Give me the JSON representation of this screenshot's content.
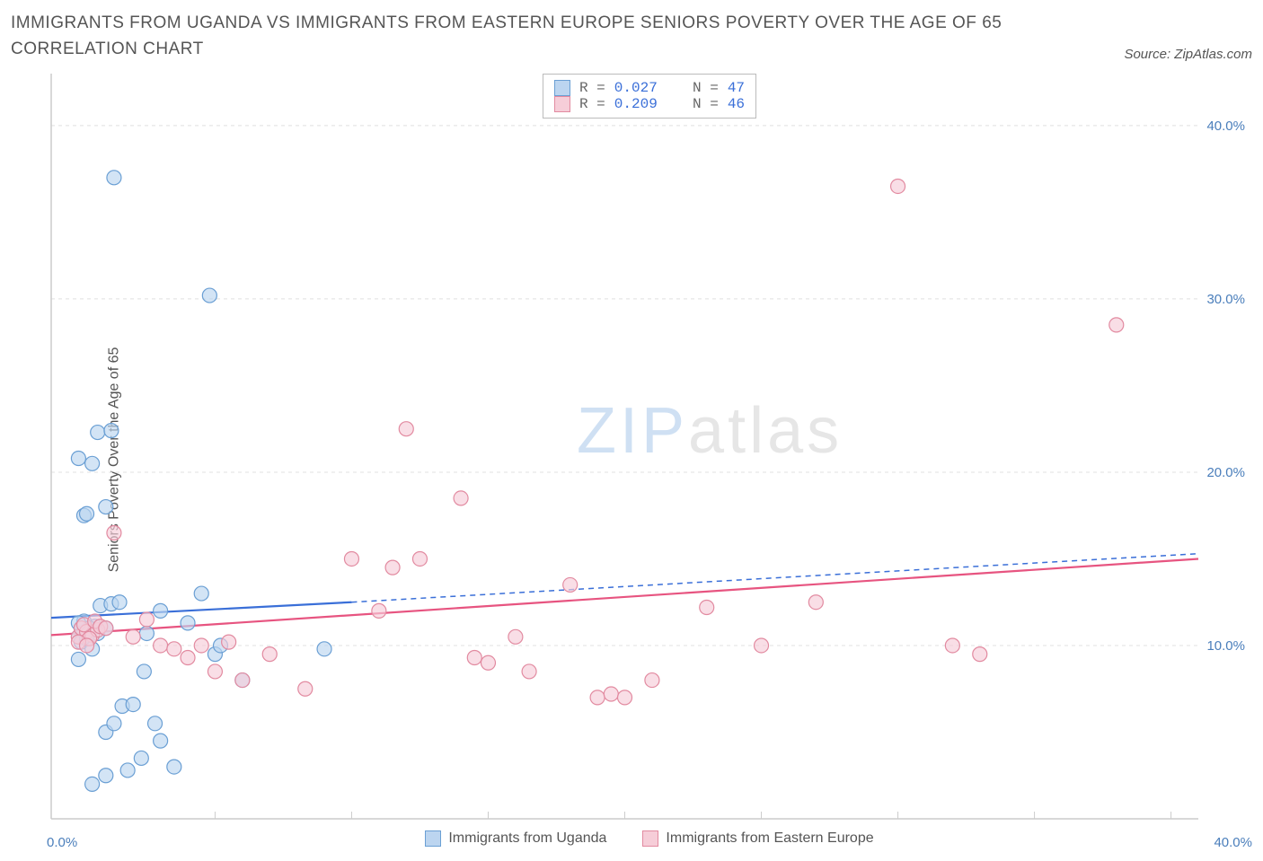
{
  "header": {
    "title": "IMMIGRANTS FROM UGANDA VS IMMIGRANTS FROM EASTERN EUROPE SENIORS POVERTY OVER THE AGE OF 65 CORRELATION CHART",
    "source": "Source: ZipAtlas.com"
  },
  "chart": {
    "type": "scatter",
    "ylabel": "Seniors Poverty Over the Age of 65",
    "x_axis_label_left": "0.0%",
    "x_axis_label_right": "40.0%",
    "xlim": [
      -1,
      41
    ],
    "ylim": [
      0,
      43
    ],
    "y_ticks": [
      10,
      20,
      30,
      40
    ],
    "y_tick_labels": [
      "10.0%",
      "20.0%",
      "30.0%",
      "40.0%"
    ],
    "x_tick_positions": [
      5,
      10,
      15,
      20,
      25,
      30,
      35,
      40
    ],
    "grid_color": "#e0e0e0",
    "axis_color": "#cccccc",
    "background_color": "#ffffff",
    "tick_label_color": "#4a7ebb",
    "marker_radius": 8,
    "marker_stroke_width": 1.2,
    "trend_line_width": 2.2,
    "series": [
      {
        "name": "Immigrants from Uganda",
        "fill": "#bcd5f0",
        "stroke": "#6a9fd4",
        "line_color": "#3a6fd8",
        "R": "0.027",
        "N": "47",
        "trend": {
          "x1": -1,
          "y1": 11.6,
          "x2": 10,
          "y2": 12.5,
          "dash_x2": 41,
          "dash_y2": 15.3
        },
        "points": [
          [
            0.0,
            10.5
          ],
          [
            0.1,
            11.0
          ],
          [
            0.2,
            10.8
          ],
          [
            0.3,
            10.6
          ],
          [
            0.5,
            10.9
          ],
          [
            0.6,
            11.1
          ],
          [
            0.2,
            11.4
          ],
          [
            0.4,
            11.0
          ],
          [
            0.7,
            10.7
          ],
          [
            0.1,
            10.2
          ],
          [
            0.0,
            11.3
          ],
          [
            0.3,
            10.4
          ],
          [
            0.8,
            12.3
          ],
          [
            1.2,
            12.4
          ],
          [
            1.0,
            11.0
          ],
          [
            1.5,
            12.5
          ],
          [
            0.0,
            20.8
          ],
          [
            0.5,
            20.5
          ],
          [
            0.2,
            17.5
          ],
          [
            0.3,
            17.6
          ],
          [
            1.0,
            18.0
          ],
          [
            0.7,
            22.3
          ],
          [
            1.2,
            22.4
          ],
          [
            4.8,
            30.2
          ],
          [
            1.3,
            37.0
          ],
          [
            0.0,
            9.2
          ],
          [
            0.5,
            9.8
          ],
          [
            1.0,
            5.0
          ],
          [
            1.3,
            5.5
          ],
          [
            1.6,
            6.5
          ],
          [
            2.0,
            6.6
          ],
          [
            2.4,
            8.5
          ],
          [
            0.5,
            2.0
          ],
          [
            1.0,
            2.5
          ],
          [
            1.8,
            2.8
          ],
          [
            2.3,
            3.5
          ],
          [
            3.0,
            4.5
          ],
          [
            3.5,
            3.0
          ],
          [
            2.8,
            5.5
          ],
          [
            6.0,
            8.0
          ],
          [
            5.0,
            9.5
          ],
          [
            9.0,
            9.8
          ],
          [
            2.5,
            10.7
          ],
          [
            3.0,
            12.0
          ],
          [
            4.0,
            11.3
          ],
          [
            4.5,
            13.0
          ],
          [
            5.2,
            10.0
          ]
        ]
      },
      {
        "name": "Immigrants from Eastern Europe",
        "fill": "#f6cdd8",
        "stroke": "#e28aa0",
        "line_color": "#e75480",
        "R": "0.209",
        "N": "46",
        "trend": {
          "x1": -1,
          "y1": 10.6,
          "x2": 41,
          "y2": 15.0
        },
        "points": [
          [
            0.0,
            10.5
          ],
          [
            0.1,
            11.0
          ],
          [
            0.3,
            10.8
          ],
          [
            0.5,
            10.6
          ],
          [
            0.7,
            10.9
          ],
          [
            0.2,
            11.2
          ],
          [
            0.4,
            10.4
          ],
          [
            0.6,
            11.4
          ],
          [
            0.0,
            10.2
          ],
          [
            0.8,
            11.1
          ],
          [
            1.0,
            11.0
          ],
          [
            0.3,
            10.0
          ],
          [
            1.3,
            16.5
          ],
          [
            2.0,
            10.5
          ],
          [
            2.5,
            11.5
          ],
          [
            3.0,
            10.0
          ],
          [
            3.5,
            9.8
          ],
          [
            4.5,
            10.0
          ],
          [
            5.5,
            10.2
          ],
          [
            4.0,
            9.3
          ],
          [
            5.0,
            8.5
          ],
          [
            6.0,
            8.0
          ],
          [
            7.0,
            9.5
          ],
          [
            8.3,
            7.5
          ],
          [
            10.0,
            15.0
          ],
          [
            11.0,
            12.0
          ],
          [
            11.5,
            14.5
          ],
          [
            12.5,
            15.0
          ],
          [
            12.0,
            22.5
          ],
          [
            14.5,
            9.3
          ],
          [
            14.0,
            18.5
          ],
          [
            15.0,
            9.0
          ],
          [
            16.0,
            10.5
          ],
          [
            16.5,
            8.5
          ],
          [
            18.0,
            13.5
          ],
          [
            19.0,
            7.0
          ],
          [
            19.5,
            7.2
          ],
          [
            20.0,
            7.0
          ],
          [
            21.0,
            8.0
          ],
          [
            23.0,
            12.2
          ],
          [
            25.0,
            10.0
          ],
          [
            27.0,
            12.5
          ],
          [
            30.0,
            36.5
          ],
          [
            32.0,
            10.0
          ],
          [
            33.0,
            9.5
          ],
          [
            38.0,
            28.5
          ]
        ]
      }
    ],
    "legend_bottom": {
      "items": [
        {
          "label": "Immigrants from Uganda",
          "fill": "#bcd5f0",
          "stroke": "#6a9fd4"
        },
        {
          "label": "Immigrants from Eastern Europe",
          "fill": "#f6cdd8",
          "stroke": "#e28aa0"
        }
      ]
    },
    "stats_box": {
      "rows": [
        {
          "swatch_fill": "#bcd5f0",
          "swatch_stroke": "#6a9fd4",
          "R": "0.027",
          "N": "47"
        },
        {
          "swatch_fill": "#f6cdd8",
          "swatch_stroke": "#e28aa0",
          "R": "0.209",
          "N": "46"
        }
      ]
    },
    "watermark": {
      "zip": "ZIP",
      "atlas": "atlas"
    }
  }
}
